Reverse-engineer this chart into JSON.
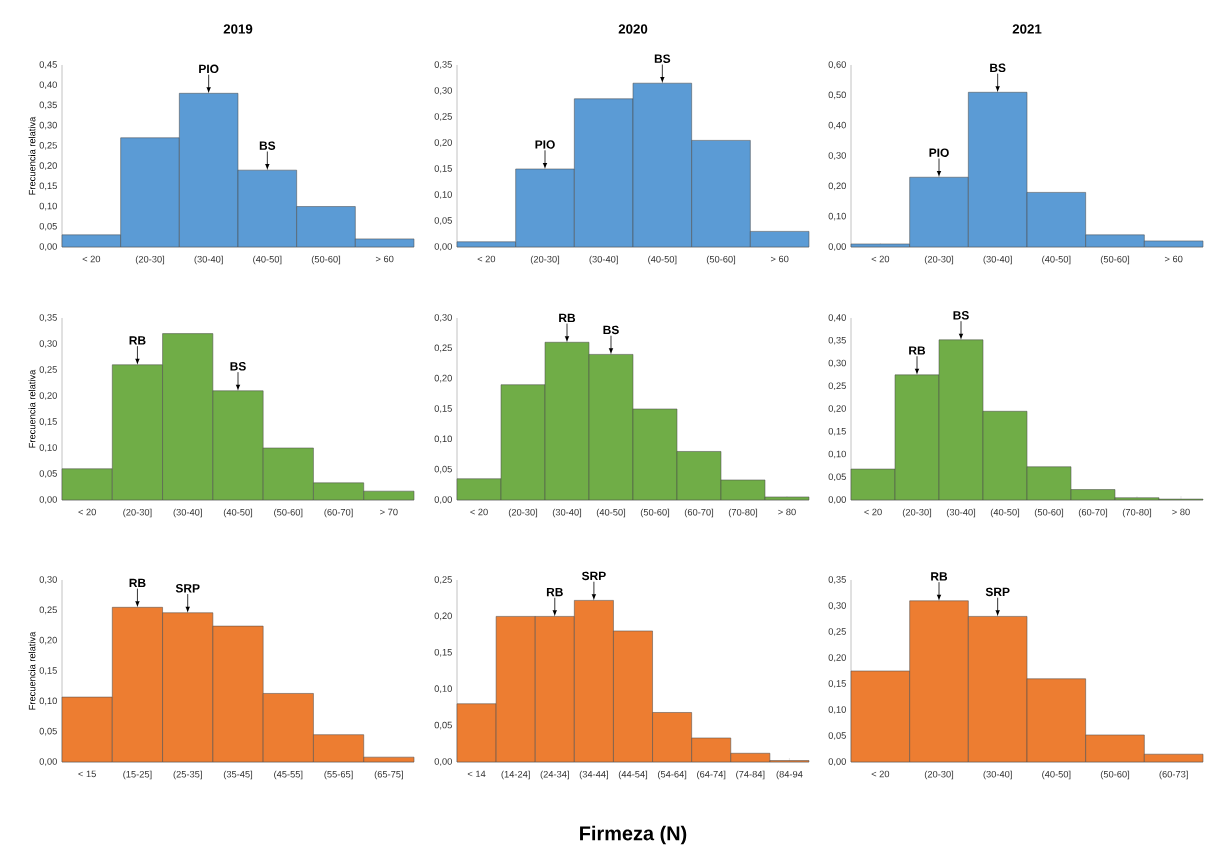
{
  "chart_data": [
    {
      "type": "bar",
      "title": "2019",
      "ylabel": "Frecuencia relativa",
      "categories": [
        "< 20",
        "(20-30]",
        "(30-40]",
        "(40-50]",
        "(50-60]",
        "> 60"
      ],
      "values": [
        0.03,
        0.27,
        0.38,
        0.19,
        0.1,
        0.02
      ],
      "color": "#5b9bd5",
      "ylim": [
        0,
        0.45
      ],
      "yticks": [
        {
          "value": 0,
          "label": "0,00"
        },
        {
          "value": 0.05,
          "label": "0,05"
        },
        {
          "value": 0.1,
          "label": "0,10"
        },
        {
          "value": 0.15,
          "label": "0,15"
        },
        {
          "value": 0.2,
          "label": "0,20"
        },
        {
          "value": 0.25,
          "label": "0,25"
        },
        {
          "value": 0.3,
          "label": "0,30"
        },
        {
          "value": 0.35,
          "label": "0,35"
        },
        {
          "value": 0.4,
          "label": "0,40"
        },
        {
          "value": 0.45,
          "label": "0,45"
        }
      ],
      "annotations": [
        {
          "text": "PIO",
          "x": "(30-40]",
          "y": 0.38
        },
        {
          "text": "BS",
          "x": "(40-50]",
          "y": 0.19
        }
      ]
    },
    {
      "type": "bar",
      "title": "2020",
      "categories": [
        "< 20",
        "(20-30]",
        "(30-40]",
        "(40-50]",
        "(50-60]",
        "> 60"
      ],
      "values": [
        0.01,
        0.15,
        0.285,
        0.315,
        0.205,
        0.03
      ],
      "color": "#5b9bd5",
      "ylim": [
        0,
        0.35
      ],
      "yticks": [
        {
          "value": 0,
          "label": "0,00"
        },
        {
          "value": 0.05,
          "label": "0,05"
        },
        {
          "value": 0.1,
          "label": "0,10"
        },
        {
          "value": 0.15,
          "label": "0,15"
        },
        {
          "value": 0.2,
          "label": "0,20"
        },
        {
          "value": 0.25,
          "label": "0,25"
        },
        {
          "value": 0.3,
          "label": "0,30"
        },
        {
          "value": 0.35,
          "label": "0,35"
        }
      ],
      "annotations": [
        {
          "text": "PIO",
          "x": "(20-30]",
          "y": 0.15
        },
        {
          "text": "BS",
          "x": "(40-50]",
          "y": 0.315
        }
      ]
    },
    {
      "type": "bar",
      "title": "2021",
      "categories": [
        "< 20",
        "(20-30]",
        "(30-40]",
        "(40-50]",
        "(50-60]",
        "> 60"
      ],
      "values": [
        0.01,
        0.23,
        0.51,
        0.18,
        0.04,
        0.02
      ],
      "color": "#5b9bd5",
      "ylim": [
        0,
        0.6
      ],
      "yticks": [
        {
          "value": 0,
          "label": "0,00"
        },
        {
          "value": 0.1,
          "label": "0,10"
        },
        {
          "value": 0.2,
          "label": "0,20"
        },
        {
          "value": 0.3,
          "label": "0,30"
        },
        {
          "value": 0.4,
          "label": "0,40"
        },
        {
          "value": 0.5,
          "label": "0,50"
        },
        {
          "value": 0.6,
          "label": "0,60"
        }
      ],
      "annotations": [
        {
          "text": "PIO",
          "x": "(20-30]",
          "y": 0.23
        },
        {
          "text": "BS",
          "x": "(30-40]",
          "y": 0.51
        }
      ]
    },
    {
      "type": "bar",
      "ylabel": "Frecuencia relativa",
      "categories": [
        "< 20",
        "(20-30]",
        "(30-40]",
        "(40-50]",
        "(50-60]",
        "(60-70]",
        "> 70"
      ],
      "values": [
        0.06,
        0.26,
        0.32,
        0.21,
        0.1,
        0.033,
        0.017
      ],
      "color": "#70ad47",
      "ylim": [
        0,
        0.35
      ],
      "yticks": [
        {
          "value": 0,
          "label": "0,00"
        },
        {
          "value": 0.05,
          "label": "0,05"
        },
        {
          "value": 0.1,
          "label": "0,10"
        },
        {
          "value": 0.15,
          "label": "0,15"
        },
        {
          "value": 0.2,
          "label": "0,20"
        },
        {
          "value": 0.25,
          "label": "0,25"
        },
        {
          "value": 0.3,
          "label": "0,30"
        },
        {
          "value": 0.35,
          "label": "0,35"
        }
      ],
      "annotations": [
        {
          "text": "RB",
          "x": "(20-30]",
          "y": 0.26
        },
        {
          "text": "BS",
          "x": "(40-50]",
          "y": 0.21
        }
      ]
    },
    {
      "type": "bar",
      "categories": [
        "< 20",
        "(20-30]",
        "(30-40]",
        "(40-50]",
        "(50-60]",
        "(60-70]",
        "(70-80]",
        "> 80"
      ],
      "values": [
        0.035,
        0.19,
        0.26,
        0.24,
        0.15,
        0.08,
        0.033,
        0.005
      ],
      "color": "#70ad47",
      "ylim": [
        0,
        0.3
      ],
      "yticks": [
        {
          "value": 0,
          "label": "0,00"
        },
        {
          "value": 0.05,
          "label": "0,05"
        },
        {
          "value": 0.1,
          "label": "0,10"
        },
        {
          "value": 0.15,
          "label": "0,15"
        },
        {
          "value": 0.2,
          "label": "0,20"
        },
        {
          "value": 0.25,
          "label": "0,25"
        },
        {
          "value": 0.3,
          "label": "0,30"
        }
      ],
      "annotations": [
        {
          "text": "RB",
          "x": "(30-40]",
          "y": 0.26
        },
        {
          "text": "BS",
          "x": "(40-50]",
          "y": 0.24
        }
      ]
    },
    {
      "type": "bar",
      "categories": [
        "< 20",
        "(20-30]",
        "(30-40]",
        "(40-50]",
        "(50-60]",
        "(60-70]",
        "(70-80]",
        "> 80"
      ],
      "values": [
        0.068,
        0.275,
        0.352,
        0.195,
        0.073,
        0.023,
        0.005,
        0.002
      ],
      "color": "#70ad47",
      "ylim": [
        0,
        0.4
      ],
      "yticks": [
        {
          "value": 0,
          "label": "0,00"
        },
        {
          "value": 0.05,
          "label": "0,05"
        },
        {
          "value": 0.1,
          "label": "0,10"
        },
        {
          "value": 0.15,
          "label": "0,15"
        },
        {
          "value": 0.2,
          "label": "0,20"
        },
        {
          "value": 0.25,
          "label": "0,25"
        },
        {
          "value": 0.3,
          "label": "0,30"
        },
        {
          "value": 0.35,
          "label": "0,35"
        },
        {
          "value": 0.4,
          "label": "0,40"
        }
      ],
      "annotations": [
        {
          "text": "RB",
          "x": "(20-30]",
          "y": 0.275
        },
        {
          "text": "BS",
          "x": "(30-40]",
          "y": 0.352
        }
      ]
    },
    {
      "type": "bar",
      "ylabel": "Frecuencia relativa",
      "categories": [
        "< 15",
        "(15-25]",
        "(25-35]",
        "(35-45]",
        "(45-55]",
        "(55-65]",
        "(65-75]"
      ],
      "values": [
        0.107,
        0.255,
        0.246,
        0.224,
        0.113,
        0.045,
        0.008
      ],
      "color": "#ed7d31",
      "ylim": [
        0,
        0.3
      ],
      "yticks": [
        {
          "value": 0,
          "label": "0,00"
        },
        {
          "value": 0.05,
          "label": "0,05"
        },
        {
          "value": 0.1,
          "label": "0,10"
        },
        {
          "value": 0.15,
          "label": "0,15"
        },
        {
          "value": 0.2,
          "label": "0,20"
        },
        {
          "value": 0.25,
          "label": "0,25"
        },
        {
          "value": 0.3,
          "label": "0,30"
        }
      ],
      "annotations": [
        {
          "text": "RB",
          "x": "(15-25]",
          "y": 0.255
        },
        {
          "text": "SRP",
          "x": "(25-35]",
          "y": 0.246
        }
      ]
    },
    {
      "type": "bar",
      "xlabel": "Firmeza (N)",
      "categories": [
        "< 14",
        "(14-24]",
        "(24-34]",
        "(34-44]",
        "(44-54]",
        "(54-64]",
        "(64-74]",
        "(74-84]",
        "(84-94"
      ],
      "values": [
        0.08,
        0.2,
        0.2,
        0.222,
        0.18,
        0.068,
        0.033,
        0.012,
        0.002
      ],
      "color": "#ed7d31",
      "ylim": [
        0,
        0.25
      ],
      "yticks": [
        {
          "value": 0,
          "label": "0,00"
        },
        {
          "value": 0.05,
          "label": "0,05"
        },
        {
          "value": 0.1,
          "label": "0,10"
        },
        {
          "value": 0.15,
          "label": "0,15"
        },
        {
          "value": 0.2,
          "label": "0,20"
        },
        {
          "value": 0.25,
          "label": "0,25"
        }
      ],
      "annotations": [
        {
          "text": "RB",
          "x": "(24-34]",
          "y": 0.2
        },
        {
          "text": "SRP",
          "x": "(34-44]",
          "y": 0.222
        }
      ]
    },
    {
      "type": "bar",
      "categories": [
        "< 20",
        "(20-30]",
        "(30-40]",
        "(40-50]",
        "(50-60]",
        "(60-73]"
      ],
      "values": [
        0.175,
        0.31,
        0.28,
        0.16,
        0.052,
        0.015
      ],
      "color": "#ed7d31",
      "ylim": [
        0,
        0.35
      ],
      "yticks": [
        {
          "value": 0,
          "label": "0,00"
        },
        {
          "value": 0.05,
          "label": "0,05"
        },
        {
          "value": 0.1,
          "label": "0,10"
        },
        {
          "value": 0.15,
          "label": "0,15"
        },
        {
          "value": 0.2,
          "label": "0,20"
        },
        {
          "value": 0.25,
          "label": "0,25"
        },
        {
          "value": 0.3,
          "label": "0,30"
        },
        {
          "value": 0.35,
          "label": "0,35"
        }
      ],
      "annotations": [
        {
          "text": "RB",
          "x": "(20-30]",
          "y": 0.31
        },
        {
          "text": "SRP",
          "x": "(30-40]",
          "y": 0.28
        }
      ]
    }
  ]
}
